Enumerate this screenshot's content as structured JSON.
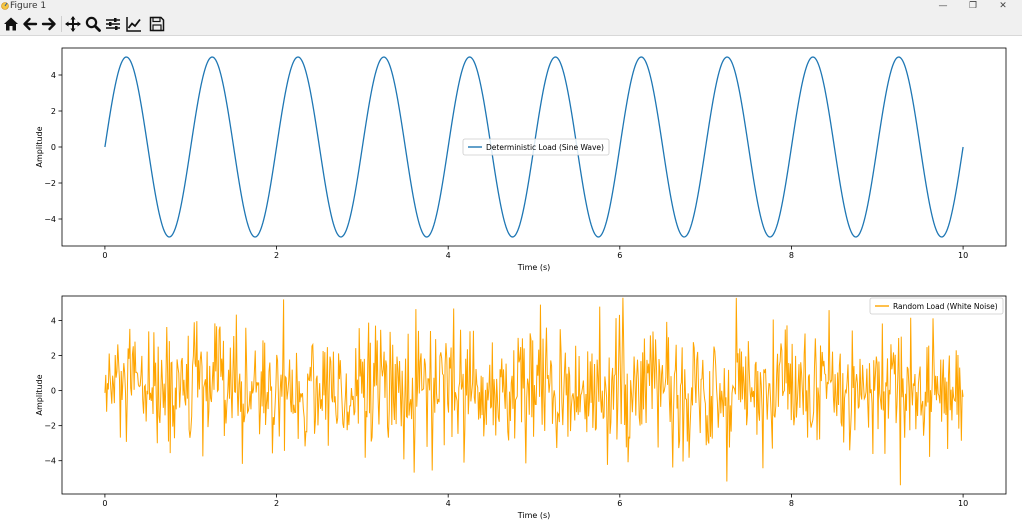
{
  "window": {
    "title": "Figure 1",
    "controls": {
      "minimize": "—",
      "restore": "❐",
      "close": "✕"
    }
  },
  "toolbar": {
    "tools": [
      {
        "name": "home-icon"
      },
      {
        "name": "back-arrow-icon"
      },
      {
        "name": "forward-arrow-icon"
      },
      {
        "name": "pan-icon"
      },
      {
        "name": "zoom-icon"
      },
      {
        "name": "configure-subplots-icon"
      },
      {
        "name": "edit-axis-icon"
      },
      {
        "name": "save-icon"
      }
    ]
  },
  "chart_data": [
    {
      "type": "line",
      "title": "",
      "xlabel": "Time (s)",
      "ylabel": "Amplitude",
      "xlim": [
        -0.5,
        10.5
      ],
      "ylim": [
        -5.5,
        5.5
      ],
      "xticks": [
        0,
        2,
        4,
        6,
        8,
        10
      ],
      "yticks": [
        -4,
        -2,
        0,
        2,
        4
      ],
      "legend_position": "center",
      "grid": false,
      "series": [
        {
          "name": "Deterministic Load (Sine Wave)",
          "color": "#1f77b4",
          "function": "y = 5·sin(2π·1·t)",
          "amplitude": 5,
          "frequency_hz": 1,
          "t_start": 0,
          "t_end": 10
        }
      ]
    },
    {
      "type": "line",
      "title": "",
      "xlabel": "Time (s)",
      "ylabel": "Amplitude",
      "xlim": [
        -0.5,
        10.5
      ],
      "ylim": [
        -5.9,
        5.4
      ],
      "xticks": [
        0,
        2,
        4,
        6,
        8,
        10
      ],
      "yticks": [
        -4,
        -2,
        0,
        2,
        4
      ],
      "legend_position": "upper right",
      "grid": false,
      "series": [
        {
          "name": "Random Load (White Noise)",
          "color": "#ffa500",
          "description": "Gaussian white noise, mean 0, std ≈ 1.8, min ≈ -5.4, max ≈ 5.3",
          "points": 1000,
          "t_start": 0,
          "t_end": 10
        }
      ]
    }
  ]
}
